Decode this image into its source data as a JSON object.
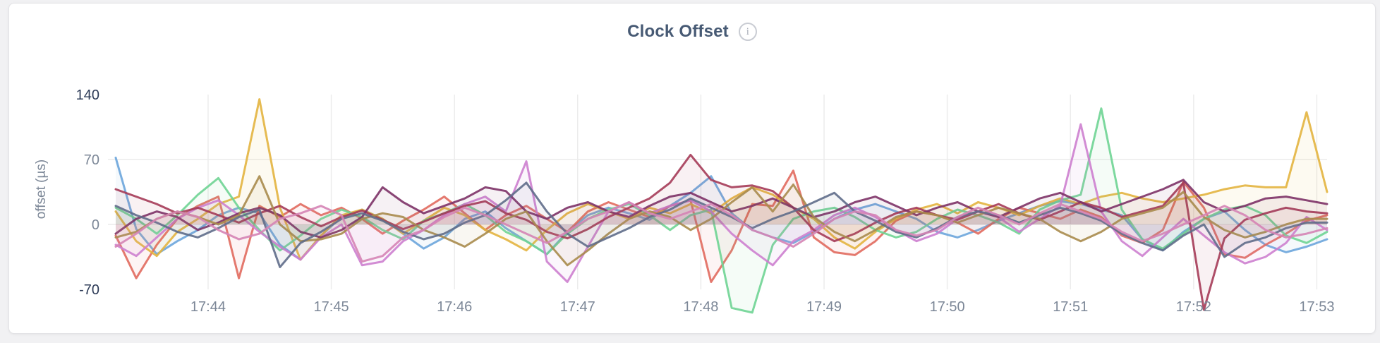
{
  "page": {
    "background": "#f1f1f3"
  },
  "header": {
    "title": "Clock Offset",
    "info_glyph": "i"
  },
  "chart_data": {
    "type": "line",
    "title": "Clock Offset",
    "xlabel": "",
    "ylabel": "offset (µs)",
    "ylim": [
      -70,
      140
    ],
    "yticks": [
      140,
      70,
      0,
      -70
    ],
    "y_grid_values": [
      70,
      0
    ],
    "ytick_color_minmax": "#2d3b57",
    "ytick_color_inner": "#7c8797",
    "xtick_color": "#7c8797",
    "grid": true,
    "grid_color": "#ececec",
    "legend": "none",
    "xticks": [
      "17:44",
      "17:45",
      "17:46",
      "17:47",
      "17:48",
      "17:49",
      "17:50",
      "17:51",
      "17:52",
      "17:53"
    ],
    "x_tick_indices": [
      4.5,
      10.5,
      16.5,
      22.5,
      28.5,
      34.5,
      40.5,
      46.5,
      52.5,
      58.5
    ],
    "x_interval_seconds": 10,
    "area_fill_opacity": 0.07,
    "line_width": 3,
    "series": [
      {
        "name": "blue",
        "color": "#6BA5DB",
        "values": [
          72,
          -5,
          -32,
          -18,
          -6,
          10,
          18,
          12,
          -22,
          -38,
          -12,
          8,
          16,
          6,
          -10,
          -26,
          -14,
          6,
          14,
          -4,
          -18,
          -32,
          -8,
          10,
          18,
          12,
          5,
          20,
          34,
          52,
          12,
          -6,
          -14,
          -20,
          -8,
          6,
          16,
          22,
          14,
          6,
          -8,
          -14,
          -6,
          4,
          12,
          20,
          25,
          22,
          16,
          10,
          -16,
          -28,
          -8,
          6,
          14,
          -6,
          -22,
          -30,
          -24,
          -16
        ]
      },
      {
        "name": "salmon",
        "color": "#E16A5E",
        "values": [
          -12,
          -58,
          -22,
          6,
          20,
          30,
          -58,
          20,
          8,
          22,
          10,
          18,
          6,
          -10,
          4,
          16,
          30,
          12,
          -6,
          10,
          20,
          6,
          -8,
          14,
          24,
          16,
          8,
          20,
          26,
          -62,
          -28,
          22,
          20,
          58,
          -14,
          -30,
          -33,
          -18,
          4,
          14,
          10,
          2,
          -10,
          6,
          18,
          12,
          6,
          16,
          8,
          -12,
          -20,
          -6,
          46,
          18,
          -32,
          -36,
          -22,
          -10,
          4,
          10
        ]
      },
      {
        "name": "gold",
        "color": "#E3B43F",
        "values": [
          14,
          -18,
          -34,
          -8,
          6,
          22,
          30,
          135,
          18,
          -38,
          -12,
          10,
          16,
          6,
          -10,
          4,
          18,
          10,
          -6,
          -16,
          -28,
          -6,
          12,
          22,
          14,
          6,
          18,
          12,
          22,
          12,
          28,
          40,
          32,
          18,
          6,
          -14,
          -26,
          -8,
          6,
          16,
          22,
          12,
          24,
          18,
          10,
          20,
          28,
          22,
          30,
          34,
          28,
          24,
          28,
          32,
          38,
          42,
          40,
          40,
          121,
          35
        ]
      },
      {
        "name": "green",
        "color": "#6FD494",
        "values": [
          18,
          6,
          -10,
          10,
          32,
          50,
          18,
          -6,
          -28,
          -12,
          6,
          16,
          8,
          -6,
          -16,
          4,
          12,
          22,
          10,
          -8,
          -18,
          -32,
          -10,
          6,
          16,
          22,
          10,
          -6,
          10,
          16,
          -90,
          -95,
          -22,
          6,
          14,
          18,
          8,
          -6,
          -14,
          -8,
          6,
          16,
          10,
          2,
          -10,
          16,
          26,
          32,
          125,
          16,
          -16,
          -26,
          -10,
          6,
          16,
          20,
          10,
          -12,
          -20,
          -8
        ]
      },
      {
        "name": "orchid",
        "color": "#CD80CF",
        "values": [
          -22,
          -34,
          -14,
          6,
          18,
          26,
          10,
          -8,
          -24,
          -38,
          -14,
          0,
          -44,
          -40,
          -18,
          -6,
          10,
          22,
          30,
          14,
          68,
          -40,
          -62,
          -24,
          14,
          24,
          12,
          20,
          26,
          14,
          -10,
          -28,
          -44,
          -18,
          -6,
          10,
          18,
          8,
          -6,
          -18,
          -10,
          6,
          14,
          8,
          -8,
          6,
          20,
          108,
          14,
          -18,
          -34,
          -14,
          6,
          -12,
          -30,
          -42,
          -35,
          -20,
          8,
          -6
        ]
      },
      {
        "name": "maroon",
        "color": "#A53B58",
        "values": [
          38,
          30,
          22,
          12,
          18,
          10,
          2,
          12,
          20,
          8,
          -2,
          8,
          15,
          5,
          -5,
          3,
          12,
          20,
          25,
          12,
          5,
          -8,
          -15,
          -5,
          8,
          18,
          28,
          45,
          75,
          48,
          40,
          42,
          36,
          18,
          -6,
          -18,
          -10,
          2,
          12,
          18,
          10,
          5,
          14,
          22,
          12,
          5,
          14,
          24,
          18,
          8,
          14,
          20,
          45,
          -92,
          -15,
          5,
          12,
          18,
          14,
          12
        ]
      },
      {
        "name": "plum",
        "color": "#7D3267",
        "values": [
          -10,
          6,
          14,
          8,
          -6,
          2,
          12,
          18,
          10,
          -8,
          -14,
          -6,
          8,
          40,
          24,
          12,
          20,
          28,
          40,
          36,
          14,
          6,
          18,
          24,
          14,
          8,
          20,
          30,
          34,
          24,
          14,
          20,
          28,
          18,
          8,
          14,
          24,
          30,
          20,
          10,
          18,
          24,
          14,
          8,
          18,
          28,
          34,
          24,
          14,
          22,
          30,
          38,
          48,
          24,
          14,
          20,
          28,
          30,
          26,
          22
        ]
      },
      {
        "name": "olive",
        "color": "#A98B4C",
        "values": [
          -14,
          -8,
          6,
          14,
          8,
          0,
          10,
          52,
          0,
          -18,
          -16,
          -10,
          6,
          12,
          8,
          -6,
          -14,
          -24,
          -10,
          6,
          14,
          -18,
          -44,
          -28,
          -10,
          6,
          14,
          8,
          -6,
          6,
          24,
          40,
          14,
          43,
          8,
          -8,
          -18,
          -6,
          8,
          14,
          10,
          2,
          10,
          18,
          12,
          6,
          -8,
          -18,
          -8,
          6,
          12,
          18,
          35,
          8,
          -6,
          -14,
          -8,
          0,
          6,
          6
        ]
      },
      {
        "name": "slate",
        "color": "#5F6D8A",
        "values": [
          20,
          10,
          2,
          -8,
          -14,
          -4,
          8,
          16,
          -46,
          -20,
          -8,
          6,
          12,
          4,
          -8,
          -16,
          -10,
          2,
          10,
          26,
          45,
          14,
          -10,
          -24,
          -14,
          -4,
          8,
          16,
          28,
          18,
          8,
          -4,
          6,
          14,
          24,
          34,
          14,
          4,
          -8,
          -14,
          -4,
          8,
          14,
          10,
          2,
          10,
          18,
          12,
          4,
          -10,
          -20,
          -28,
          -12,
          0,
          -35,
          -20,
          -14,
          -4,
          2,
          2
        ]
      },
      {
        "name": "rose",
        "color": "#D584B5",
        "values": [
          -24,
          -10,
          6,
          14,
          8,
          -6,
          -16,
          -10,
          6,
          12,
          20,
          10,
          -40,
          -34,
          -14,
          -6,
          8,
          18,
          10,
          0,
          -10,
          -20,
          -8,
          6,
          14,
          24,
          12,
          6,
          14,
          22,
          10,
          -6,
          -14,
          -24,
          -10,
          6,
          14,
          10,
          -6,
          -12,
          -6,
          8,
          18,
          10,
          0,
          12,
          22,
          14,
          6,
          -8,
          -18,
          -10,
          0,
          10,
          20,
          10,
          -6,
          -14,
          -10,
          -4
        ]
      }
    ]
  }
}
